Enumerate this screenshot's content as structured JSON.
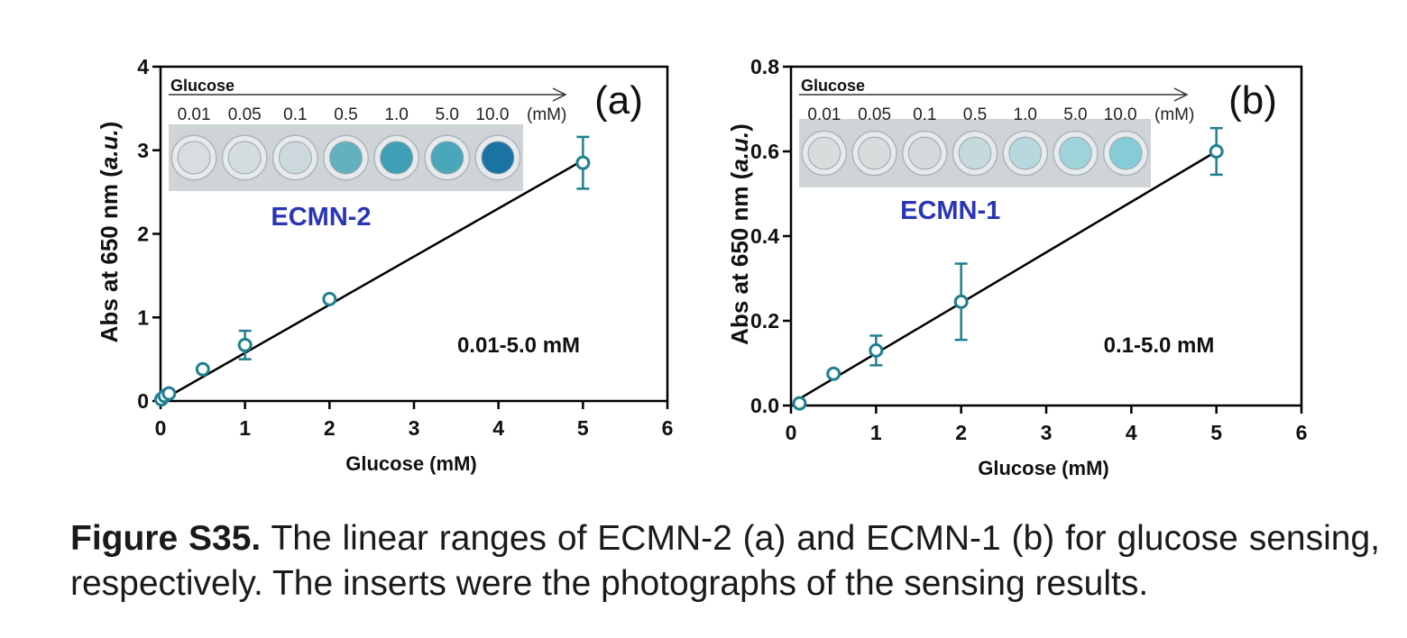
{
  "chart_data": [
    {
      "panel": "(a)",
      "type": "scatter",
      "xlabel": "Glucose (mM)",
      "ylabel_prefix": "Abs at 650 nm (",
      "ylabel_unit": "a.u.",
      "ylabel_suffix": ")",
      "xlim": [
        0,
        6
      ],
      "ylim": [
        0,
        4
      ],
      "xticks": [
        0,
        1,
        2,
        3,
        4,
        5,
        6
      ],
      "yticks": [
        0,
        1,
        2,
        3,
        4
      ],
      "ytick_labels": [
        "0",
        "1",
        "2",
        "3",
        "4"
      ],
      "x": [
        0.01,
        0.05,
        0.1,
        0.5,
        1.0,
        2.0,
        5.0
      ],
      "y": [
        0.02,
        0.06,
        0.09,
        0.38,
        0.67,
        1.22,
        2.85
      ],
      "yerr": [
        0.02,
        0.02,
        0.03,
        0.04,
        0.17,
        0.05,
        0.31
      ],
      "fit": {
        "x": [
          0,
          5
        ],
        "y": [
          0.0,
          2.88
        ]
      },
      "range_label": "0.01-5.0 mM",
      "inset": {
        "arrow_label": "Glucose",
        "concentrations": [
          "0.01",
          "0.05",
          "0.1",
          "0.5",
          "1.0",
          "5.0",
          "10.0"
        ],
        "unit": "(mM)",
        "name": "ECMN-2",
        "well_colors": [
          "#d7dde1",
          "#d3dcdf",
          "#ccd8dc",
          "#63b1bf",
          "#3f9fb5",
          "#4aa6b9",
          "#1b73a3"
        ]
      }
    },
    {
      "panel": "(b)",
      "type": "scatter",
      "xlabel": "Glucose (mM)",
      "ylabel_prefix": "Abs at 650 nm (",
      "ylabel_unit": "a.u.",
      "ylabel_suffix": ")",
      "xlim": [
        0,
        6
      ],
      "ylim": [
        0,
        0.8
      ],
      "xticks": [
        0,
        1,
        2,
        3,
        4,
        5,
        6
      ],
      "yticks": [
        0,
        0.2,
        0.4,
        0.6,
        0.8
      ],
      "ytick_labels": [
        "0.0",
        "0.2",
        "0.4",
        "0.6",
        "0.8"
      ],
      "x": [
        0.1,
        0.5,
        1.0,
        2.0,
        5.0
      ],
      "y": [
        0.005,
        0.075,
        0.13,
        0.245,
        0.6
      ],
      "yerr": [
        0.005,
        0.01,
        0.035,
        0.09,
        0.055
      ],
      "fit": {
        "x": [
          0.05,
          5
        ],
        "y": [
          0.01,
          0.6
        ]
      },
      "range_label": "0.1-5.0 mM",
      "inset": {
        "arrow_label": "Glucose",
        "concentrations": [
          "0.01",
          "0.05",
          "0.1",
          "0.5",
          "1.0",
          "5.0",
          "10.0"
        ],
        "unit": "(mM)",
        "name": "ECMN-1",
        "well_colors": [
          "#d9dcdd",
          "#d8dcdc",
          "#d4dadb",
          "#c6d9dc",
          "#b7d8dd",
          "#9fd3da",
          "#86ccd7"
        ]
      }
    }
  ],
  "caption": {
    "label": "Figure S35.",
    "text": " The linear ranges of ECMN-2 (a) and ECMN-1 (b) for glucose sensing, respectively. The inserts were the photographs of the sensing results."
  }
}
